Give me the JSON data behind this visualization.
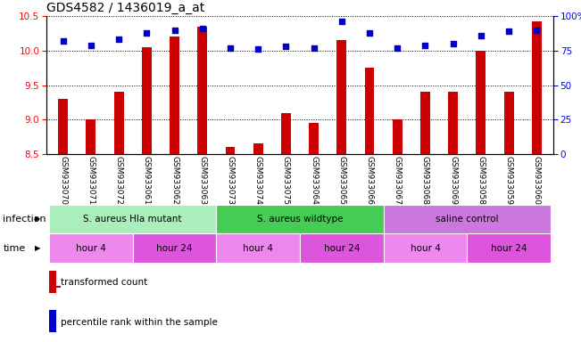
{
  "title": "GDS4582 / 1436019_a_at",
  "samples": [
    "GSM933070",
    "GSM933071",
    "GSM933072",
    "GSM933061",
    "GSM933062",
    "GSM933063",
    "GSM933073",
    "GSM933074",
    "GSM933075",
    "GSM933064",
    "GSM933065",
    "GSM933066",
    "GSM933067",
    "GSM933068",
    "GSM933069",
    "GSM933058",
    "GSM933059",
    "GSM933060"
  ],
  "transformed_count": [
    9.3,
    9.0,
    9.4,
    10.05,
    10.2,
    10.35,
    8.6,
    8.65,
    9.1,
    8.95,
    10.15,
    9.75,
    9.0,
    9.4,
    9.4,
    10.0,
    9.4,
    10.42
  ],
  "percentile_rank": [
    82,
    79,
    83,
    88,
    90,
    91,
    77,
    76,
    78,
    77,
    96,
    88,
    77,
    79,
    80,
    86,
    89,
    90
  ],
  "ylim_left": [
    8.5,
    10.5
  ],
  "ylim_right": [
    0,
    100
  ],
  "yticks_left": [
    8.5,
    9.0,
    9.5,
    10.0,
    10.5
  ],
  "yticks_right": [
    0,
    25,
    50,
    75,
    100
  ],
  "ytick_labels_right": [
    "0",
    "25",
    "50",
    "75",
    "100%"
  ],
  "bar_color": "#cc0000",
  "dot_color": "#0000cc",
  "infection_groups": [
    {
      "label": "S. aureus Hla mutant",
      "start": 0,
      "end": 6,
      "color": "#aaeebb"
    },
    {
      "label": "S. aureus wildtype",
      "start": 6,
      "end": 12,
      "color": "#44cc55"
    },
    {
      "label": "saline control",
      "start": 12,
      "end": 18,
      "color": "#cc77dd"
    }
  ],
  "time_groups": [
    {
      "label": "hour 4",
      "start": 0,
      "end": 3,
      "color": "#ee88ee"
    },
    {
      "label": "hour 24",
      "start": 3,
      "end": 6,
      "color": "#dd55dd"
    },
    {
      "label": "hour 4",
      "start": 6,
      "end": 9,
      "color": "#ee88ee"
    },
    {
      "label": "hour 24",
      "start": 9,
      "end": 12,
      "color": "#dd55dd"
    },
    {
      "label": "hour 4",
      "start": 12,
      "end": 15,
      "color": "#ee88ee"
    },
    {
      "label": "hour 24",
      "start": 15,
      "end": 18,
      "color": "#dd55dd"
    }
  ],
  "infection_label": "infection",
  "time_label": "time",
  "legend_items": [
    {
      "label": "transformed count",
      "color": "#cc0000"
    },
    {
      "label": "percentile rank within the sample",
      "color": "#0000cc"
    }
  ],
  "background_color": "#ffffff",
  "plot_bg_color": "#ffffff",
  "title_fontsize": 10,
  "tick_fontsize": 7.5,
  "sample_fontsize": 6.5,
  "bar_width": 0.35
}
